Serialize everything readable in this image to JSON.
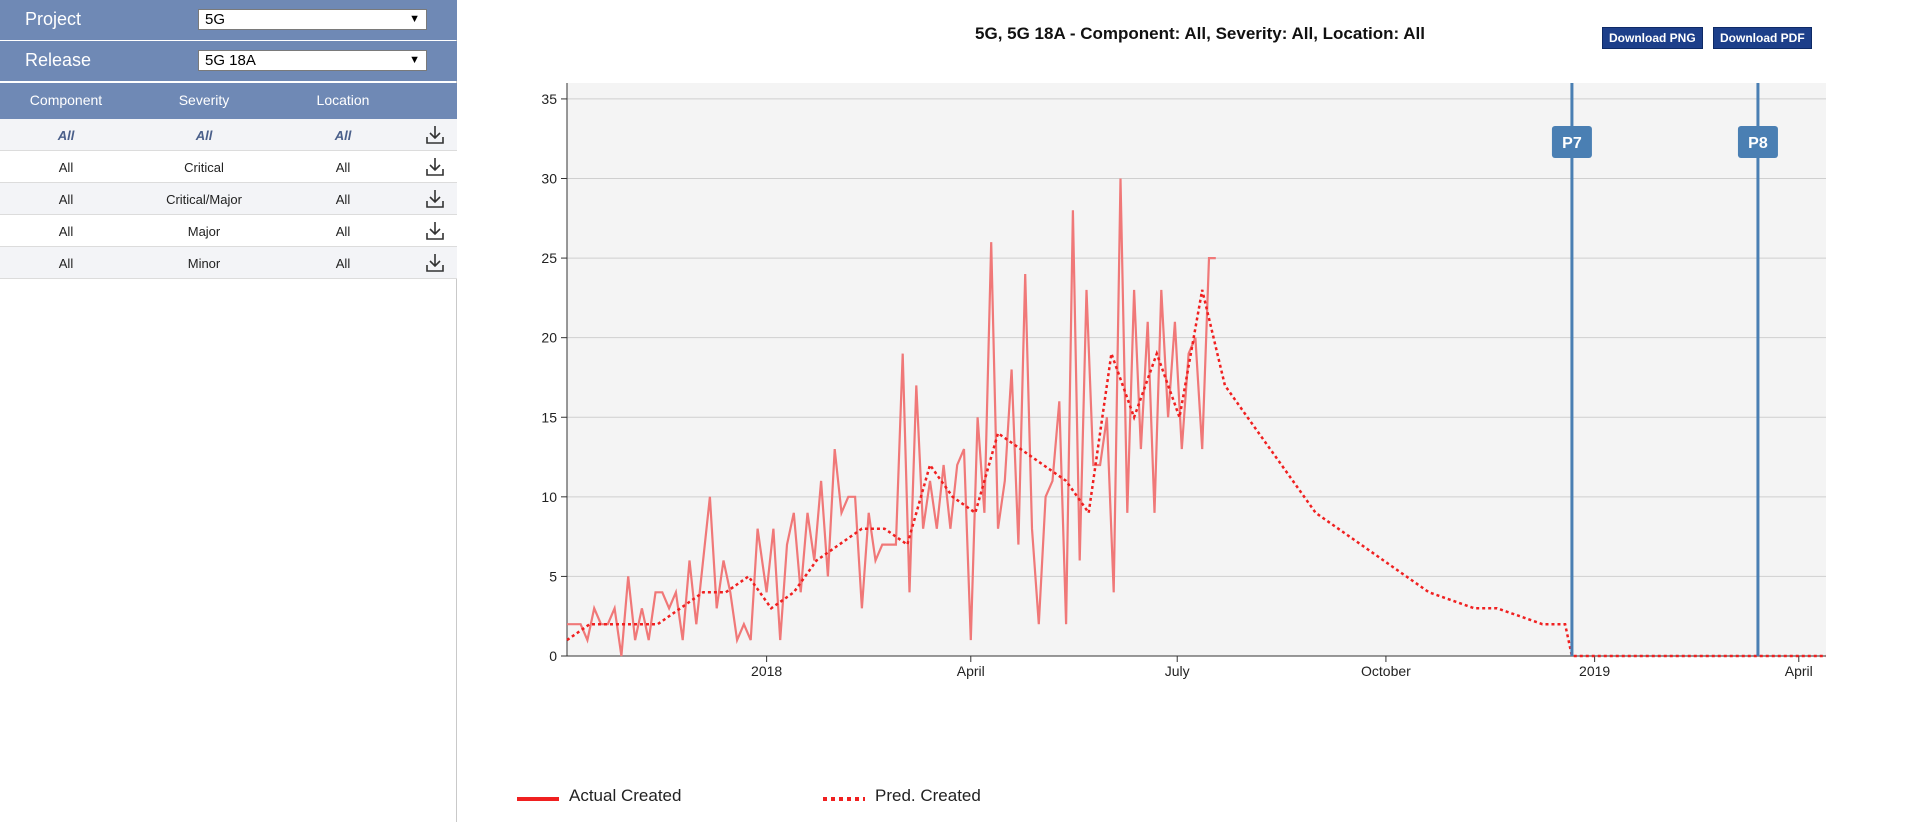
{
  "sidebar": {
    "project_label": "Project",
    "project_value": "5G",
    "release_label": "Release",
    "release_value": "5G 18A",
    "headers": [
      "Component",
      "Severity",
      "Location"
    ],
    "rows": [
      [
        "All",
        "All",
        "All"
      ],
      [
        "All",
        "Critical",
        "All"
      ],
      [
        "All",
        "Critical/Major",
        "All"
      ],
      [
        "All",
        "Major",
        "All"
      ],
      [
        "All",
        "Minor",
        "All"
      ]
    ]
  },
  "buttons": {
    "png": "Download PNG",
    "pdf": "Download PDF"
  },
  "colors": {
    "actual": "#f07878",
    "pred": "#f02020",
    "milestone": "#4a7fb3",
    "header": "#6f89b5",
    "plot_bg": "#f4f4f4"
  },
  "icons": {
    "download": "download-icon",
    "dropdown": "triangle-down-icon"
  },
  "chart_data": {
    "type": "line",
    "title": "5G, 5G 18A - Component: All, Severity: All, Location: All",
    "xlabel": "",
    "ylabel": "",
    "ylim": [
      0,
      36
    ],
    "yticks": [
      0,
      5,
      10,
      15,
      20,
      25,
      30,
      35
    ],
    "grid": true,
    "legend_position": "bottom-left",
    "xlim": [
      "2017-10-05",
      "2019-04-13"
    ],
    "xticks": [
      {
        "label": "2018",
        "date": "2018-01-01"
      },
      {
        "label": "April",
        "date": "2018-04-01"
      },
      {
        "label": "July",
        "date": "2018-07-01"
      },
      {
        "label": "October",
        "date": "2018-10-01"
      },
      {
        "label": "2019",
        "date": "2019-01-01"
      },
      {
        "label": "April",
        "date": "2019-04-01"
      }
    ],
    "milestones": [
      {
        "label": "P7",
        "date": "2018-12-22"
      },
      {
        "label": "P8",
        "date": "2019-03-14"
      }
    ],
    "series": [
      {
        "name": "Actual Created",
        "style": "solid",
        "x": [
          "2017-10-05",
          "2017-10-08",
          "2017-10-11",
          "2017-10-14",
          "2017-10-17",
          "2017-10-20",
          "2017-10-23",
          "2017-10-26",
          "2017-10-29",
          "2017-11-01",
          "2017-11-04",
          "2017-11-07",
          "2017-11-10",
          "2017-11-13",
          "2017-11-16",
          "2017-11-19",
          "2017-11-22",
          "2017-11-25",
          "2017-11-28",
          "2017-12-01",
          "2017-12-04",
          "2017-12-07",
          "2017-12-10",
          "2017-12-13",
          "2017-12-16",
          "2017-12-19",
          "2017-12-22",
          "2017-12-25",
          "2017-12-28",
          "2018-01-01",
          "2018-01-04",
          "2018-01-07",
          "2018-01-10",
          "2018-01-13",
          "2018-01-16",
          "2018-01-19",
          "2018-01-22",
          "2018-01-25",
          "2018-01-28",
          "2018-01-31",
          "2018-02-03",
          "2018-02-06",
          "2018-02-09",
          "2018-02-12",
          "2018-02-15",
          "2018-02-18",
          "2018-02-21",
          "2018-02-24",
          "2018-02-27",
          "2018-03-02",
          "2018-03-05",
          "2018-03-08",
          "2018-03-11",
          "2018-03-14",
          "2018-03-17",
          "2018-03-20",
          "2018-03-23",
          "2018-03-26",
          "2018-03-29",
          "2018-04-01",
          "2018-04-04",
          "2018-04-07",
          "2018-04-10",
          "2018-04-13",
          "2018-04-16",
          "2018-04-19",
          "2018-04-22",
          "2018-04-25",
          "2018-04-28",
          "2018-05-01",
          "2018-05-04",
          "2018-05-07",
          "2018-05-10",
          "2018-05-13",
          "2018-05-16",
          "2018-05-19",
          "2018-05-22",
          "2018-05-25",
          "2018-05-28",
          "2018-05-31",
          "2018-06-03",
          "2018-06-06",
          "2018-06-09",
          "2018-06-12",
          "2018-06-15",
          "2018-06-18",
          "2018-06-21",
          "2018-06-24",
          "2018-06-27",
          "2018-06-30",
          "2018-07-03",
          "2018-07-06",
          "2018-07-09",
          "2018-07-12",
          "2018-07-15",
          "2018-07-18"
        ],
        "y": [
          2,
          2,
          2,
          1,
          3,
          2,
          2,
          3,
          0,
          5,
          1,
          3,
          1,
          4,
          4,
          3,
          4,
          1,
          6,
          2,
          6,
          10,
          3,
          6,
          4,
          1,
          2,
          1,
          8,
          4,
          8,
          1,
          7,
          9,
          4,
          9,
          6,
          11,
          5,
          13,
          9,
          10,
          10,
          3,
          9,
          6,
          7,
          7,
          7,
          19,
          4,
          17,
          8,
          11,
          8,
          12,
          8,
          12,
          13,
          1,
          15,
          9,
          26,
          8,
          11,
          18,
          7,
          24,
          8,
          2,
          10,
          11,
          16,
          2,
          28,
          6,
          23,
          12,
          12,
          15,
          4,
          30,
          9,
          23,
          13,
          21,
          9,
          23,
          15,
          21,
          13,
          19,
          20,
          13,
          25,
          25
        ]
      },
      {
        "name": "Pred. Created",
        "style": "dotted",
        "x": [
          "2017-10-05",
          "2017-10-15",
          "2017-10-25",
          "2017-11-04",
          "2017-11-14",
          "2017-11-24",
          "2017-12-04",
          "2017-12-14",
          "2017-12-24",
          "2018-01-03",
          "2018-01-13",
          "2018-01-23",
          "2018-02-02",
          "2018-02-12",
          "2018-02-22",
          "2018-03-04",
          "2018-03-14",
          "2018-03-24",
          "2018-04-03",
          "2018-04-13",
          "2018-04-23",
          "2018-05-03",
          "2018-05-13",
          "2018-05-23",
          "2018-06-02",
          "2018-06-12",
          "2018-06-22",
          "2018-07-02",
          "2018-07-12",
          "2018-07-22",
          "2018-08-01",
          "2018-08-11",
          "2018-08-21",
          "2018-08-31",
          "2018-09-10",
          "2018-09-20",
          "2018-09-30",
          "2018-10-10",
          "2018-10-20",
          "2018-10-30",
          "2018-11-09",
          "2018-11-19",
          "2018-11-29",
          "2018-12-09",
          "2018-12-19",
          "2018-12-22",
          "2019-01-10",
          "2019-02-10",
          "2019-03-14",
          "2019-04-13"
        ],
        "y": [
          1,
          2,
          2,
          2,
          2,
          3,
          4,
          4,
          5,
          3,
          4,
          6,
          7,
          8,
          8,
          7,
          12,
          10,
          9,
          14,
          13,
          12,
          11,
          9,
          19,
          15,
          19,
          15,
          23,
          17,
          15,
          13,
          11,
          9,
          8,
          7,
          6,
          5,
          4,
          3.5,
          3,
          3,
          2.5,
          2,
          2,
          0,
          0,
          0,
          0,
          0
        ]
      }
    ]
  }
}
